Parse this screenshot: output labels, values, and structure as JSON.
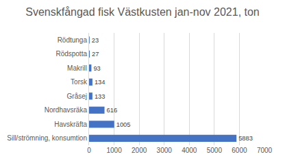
{
  "chart_data": {
    "type": "bar",
    "title": "Svenskfångad fisk Västkusten jan-nov 2021, ton",
    "orientation": "horizontal",
    "categories": [
      "Rödtunga",
      "Rödspotta",
      "Makrill",
      "Torsk",
      "Gråsej",
      "Nordhavsräka",
      "Havskräfta",
      "Sill/strömning, konsumtion"
    ],
    "values": [
      23,
      27,
      93,
      134,
      133,
      616,
      1005,
      5883
    ],
    "color": "#4472c4",
    "xlim": [
      0,
      7000
    ],
    "xticks": [
      0,
      1000,
      2000,
      3000,
      4000,
      5000,
      6000,
      7000
    ],
    "grid": true,
    "data_labels": true
  }
}
